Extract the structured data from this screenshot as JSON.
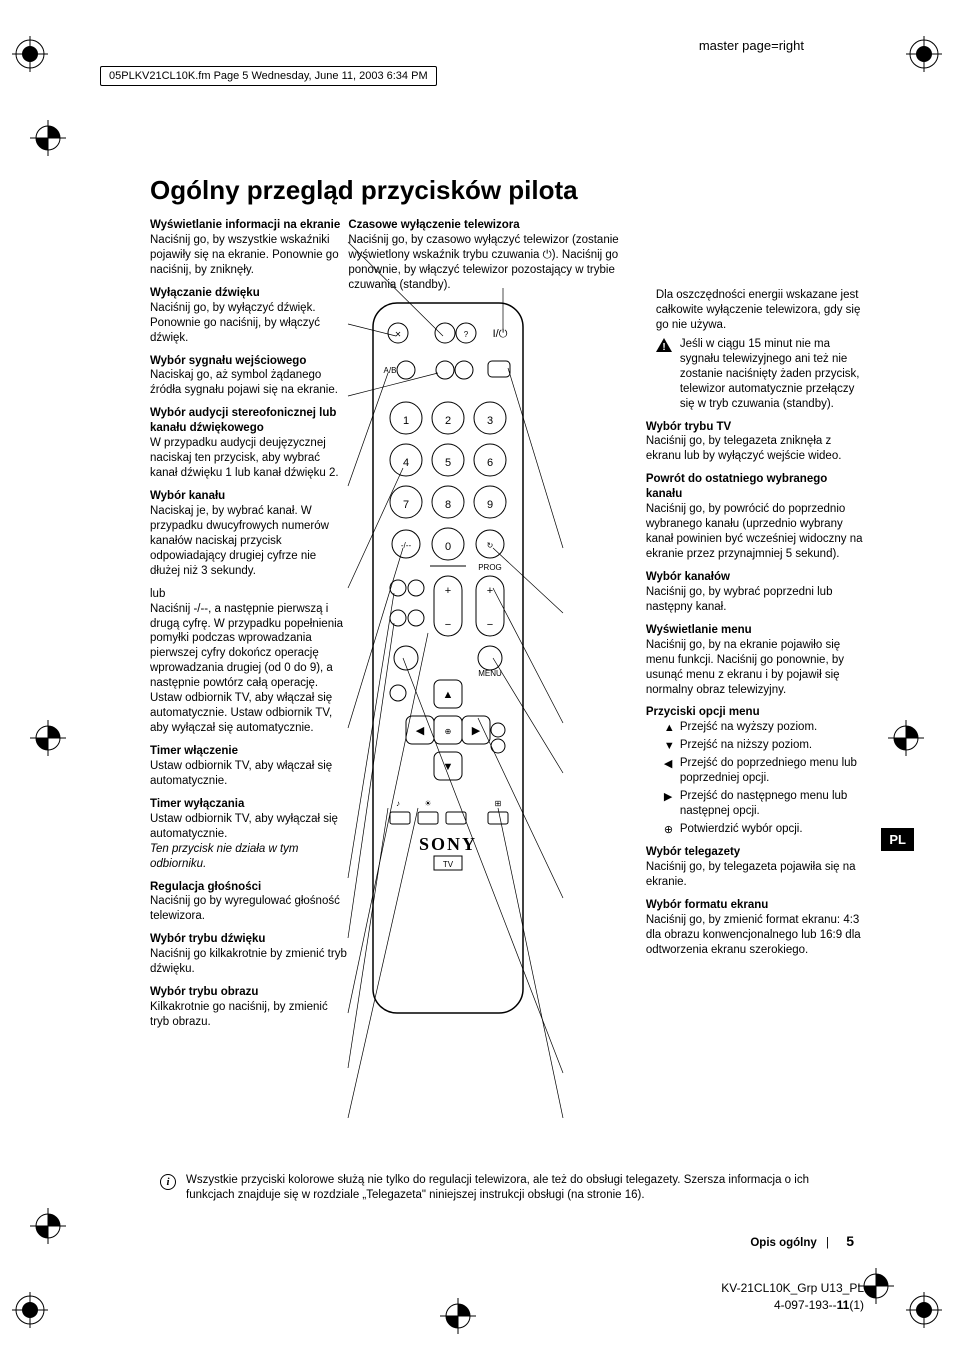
{
  "header": {
    "master_page": "master page=right",
    "file_info": "05PLKV21CL10K.fm  Page 5  Wednesday, June 11, 2003  6:34 PM"
  },
  "title": "Ogólny przegląd przycisków pilota",
  "left_sections": [
    {
      "title": "Wyświetlanie informacji na ekranie",
      "body": "Naciśnij go, by wszystkie wskaźniki pojawiły się na ekranie. Ponownie go naciśnij, by zniknęły."
    },
    {
      "title": "Wyłączanie dźwięku",
      "body": "Naciśnij go, by wyłączyć dźwięk. Ponownie go naciśnij, by włączyć dźwięk."
    },
    {
      "title": "Wybór sygnału wejściowego",
      "body": "Naciskaj go, aż symbol żądanego źródła sygnału pojawi się na ekranie."
    },
    {
      "title": "Wybór audycji stereofonicznej lub kanału dźwiękowego",
      "body": "W przypadku audycji deujęzycznej naciskaj ten przycisk, aby wybrać kanał dźwięku 1 lub kanał dźwięku 2."
    },
    {
      "title": "Wybór kanału",
      "body": "Naciskaj je, by wybrać kanał. W przypadku dwucyfrowych numerów kanałów naciskaj przycisk odpowiadający drugiej cyfrze nie dłużej niż 3 sekundy."
    },
    {
      "title_plain": "lub",
      "body": "Naciśnij -/--, a następnie pierwszą i drugą cyfrę. W przypadku popełnienia pomyłki podczas wprowadzania pierwszej cyfry dokończ operację wprowadzania drugiej (od 0 do 9), a następnie powtórz całą operację. Ustaw odbiornik TV, aby włączał się automatycznie. Ustaw odbiornik TV, aby wyłączał się automatycznie."
    },
    {
      "title": "Timer włączenie",
      "body": "Ustaw odbiornik TV, aby włączał się automatycznie."
    },
    {
      "title": "Timer wyłączania",
      "body": "Ustaw odbiornik TV, aby wyłączał się automatycznie.",
      "italic": "Ten przycisk nie działa w tym odbiorniku."
    },
    {
      "title": "Regulacja głośności",
      "body": "Naciśnij go by wyregulować głośność telewizora."
    },
    {
      "title": "Wybór trybu dźwięku",
      "body": "Naciśnij go kilkakrotnie by zmienić tryb dźwięku."
    },
    {
      "title": "Wybór trybu obrazu",
      "body": "Kilkakrotnie go naciśnij, by zmienić tryb obrazu."
    }
  ],
  "center_top": {
    "title": "Czasowe wyłączenie telewizora",
    "body": "Naciśnij go, by czasowo wyłączyć telewizor (zostanie wyświetlony wskaźnik trybu czuwania ⏻). Naciśnij go ponownie, by włączyć telewizor pozostający w trybie czuwania (standby)."
  },
  "right_intro": {
    "body": "Dla oszczędności energii wskazane jest całkowite wyłączenie telewizora, gdy się go nie używa.",
    "warn": "Jeśli w ciągu 15 minut nie ma sygnału telewizyjnego ani też nie zostanie naciśnięty żaden przycisk, telewizor automatycznie przełączy się w tryb czuwania (standby)."
  },
  "right_sections": [
    {
      "title": "Wybór trybu TV",
      "body": "Naciśnij go, by telegazeta zniknęła z ekranu lub by wyłączyć wejście wideo."
    },
    {
      "title": "Powrót do ostatniego wybranego kanału",
      "body": "Naciśnij go, by powrócić do poprzednio wybranego kanału (uprzednio wybrany kanał powinien być wcześniej widoczny na ekranie przez przynajmniej 5 sekund)."
    },
    {
      "title": "Wybór kanałów",
      "body": "Naciśnij go, by wybrać poprzedni lub następny kanał."
    },
    {
      "title": "Wyświetlanie menu",
      "body": "Naciśnij go, by na ekranie pojawiło się menu funkcji. Naciśnij go ponownie, by usunąć menu z ekranu i by pojawił się normalny obraz telewizyjny."
    },
    {
      "title": "Przyciski opcji menu",
      "options": [
        {
          "sym": "▲",
          "text": "Przejść na wyższy poziom."
        },
        {
          "sym": "▼",
          "text": "Przejść na niższy poziom."
        },
        {
          "sym": "◀",
          "text": "Przejść do poprzedniego menu lub poprzedniej opcji."
        },
        {
          "sym": "▶",
          "text": "Przejść do następnego menu lub następnej opcji."
        },
        {
          "sym": "⊕",
          "text": "Potwierdzić wybór opcji."
        }
      ]
    },
    {
      "title": "Wybór telegazety",
      "body": "Naciśnij go, by telegazeta pojawiła się na ekranie."
    },
    {
      "title": "Wybór formatu ekranu",
      "body": "Naciśnij go, by zmienić format ekranu: 4:3 dla obrazu konwencjonalnego lub 16:9 dla odtworzenia ekranu szerokiego."
    }
  ],
  "remote": {
    "brand": "SONY",
    "label": "TV",
    "numbers": [
      "1",
      "2",
      "3",
      "4",
      "5",
      "6",
      "7",
      "8",
      "9",
      "0"
    ],
    "top_labels": {
      "ab": "A/B",
      "prog": "PROG",
      "menu": "MENU"
    }
  },
  "footer_note": "Wszystkie przyciski kolorowe służą nie tylko do regulacji telewizora, ale też do obsługi telegazety. Szersza informacja o ich funkcjach znajduje się w rozdziale „Telegazeta\" niniejszej instrukcji obsługi (na stronie 16).",
  "page_footer": {
    "label": "Opis ogólny",
    "page": "5"
  },
  "doc_footer": {
    "line1": "KV-21CL10K_Grp U13_PL",
    "line2": "4-097-193--",
    "bold": "11",
    "suffix": "(1)"
  },
  "pl_tab": "PL",
  "colors": {
    "text": "#000000",
    "background": "#ffffff",
    "tab_bg": "#000000",
    "tab_fg": "#ffffff"
  }
}
